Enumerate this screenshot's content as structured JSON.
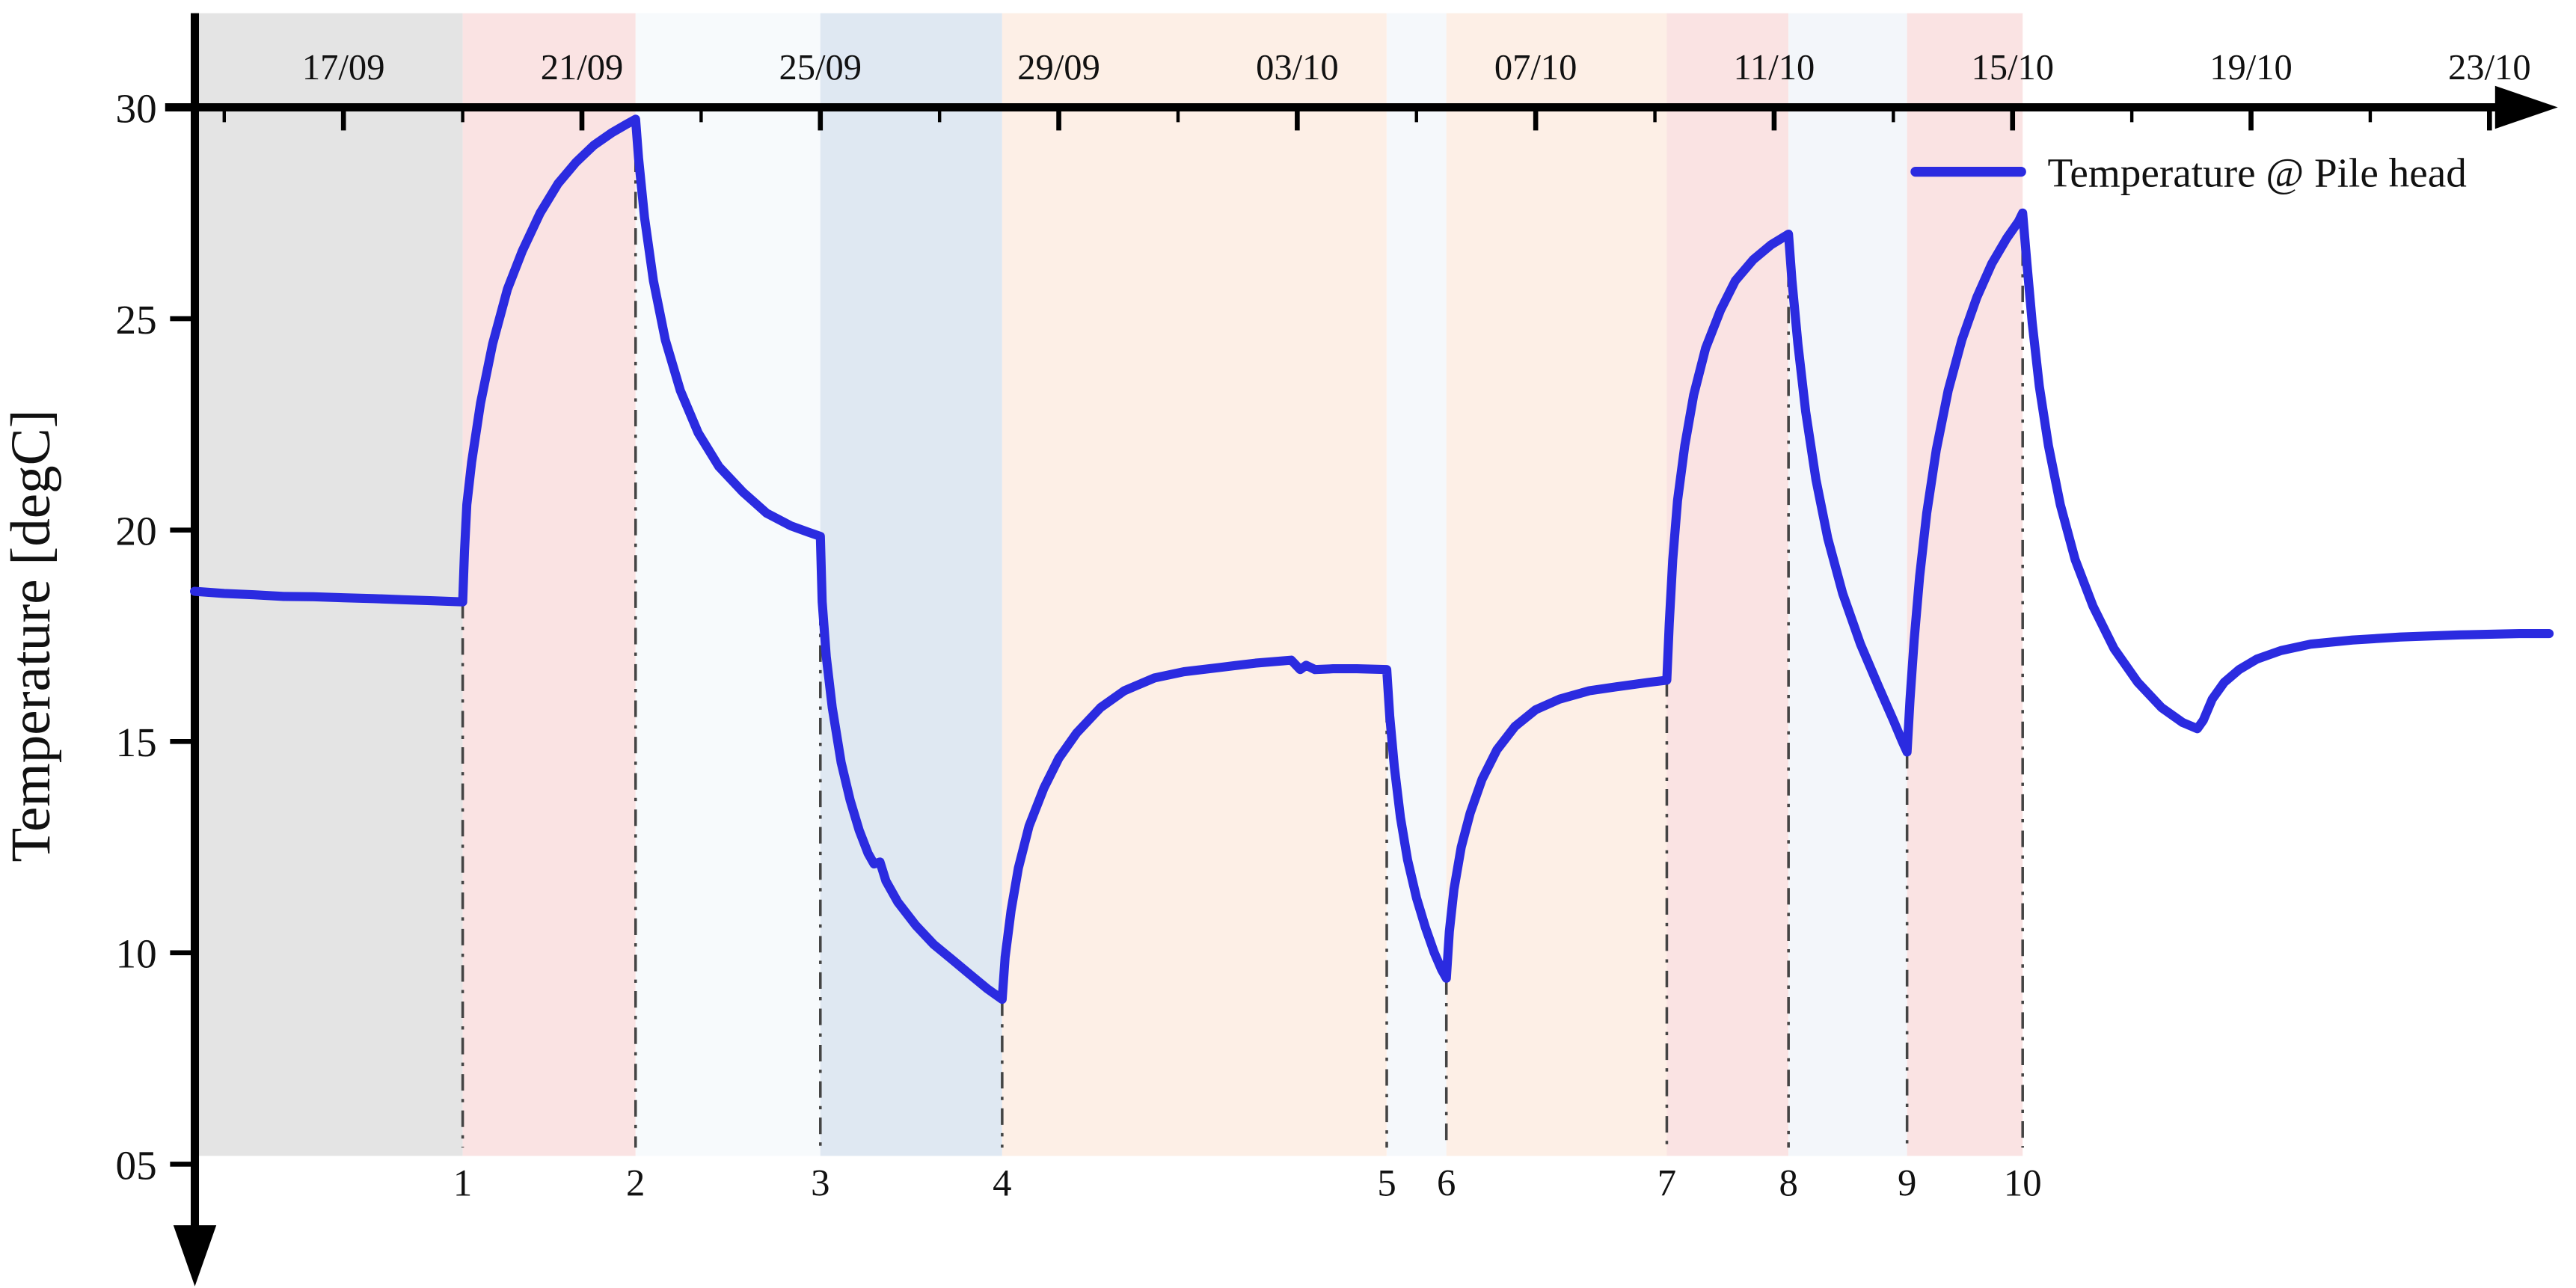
{
  "page": {
    "background": "#ffffff"
  },
  "chart_data": {
    "type": "line",
    "title": "",
    "xlabel": "",
    "ylabel": "Temperature [degC]",
    "ylim": [
      5,
      30
    ],
    "xlim_days": [
      -2.6,
      37.2
    ],
    "grid": false,
    "legend_position": "top-right",
    "legend": {
      "label": "Temperature @ Pile head",
      "color": "#2b2be0"
    },
    "x_axis": {
      "tick_labels": [
        "17/09",
        "21/09",
        "25/09",
        "29/09",
        "03/10",
        "07/10",
        "11/10",
        "15/10",
        "19/10",
        "23/10"
      ],
      "tick_days": [
        0,
        4,
        8,
        12,
        16,
        20,
        24,
        28,
        32,
        36
      ],
      "minor_tick_days": [
        -2,
        2,
        6,
        10,
        14,
        18,
        22,
        26,
        30,
        34
      ]
    },
    "y_axis": {
      "ticks": [
        30,
        25,
        20,
        15,
        10,
        5
      ],
      "tick_labels": [
        "30",
        "25",
        "20",
        "15",
        "10",
        "05"
      ]
    },
    "events": [
      {
        "n": "1",
        "day": 2.0,
        "top_temp": 18.3
      },
      {
        "n": "2",
        "day": 4.9,
        "top_temp": 29.72
      },
      {
        "n": "3",
        "day": 8.0,
        "top_temp": 19.85
      },
      {
        "n": "4",
        "day": 11.05,
        "top_temp": 8.9
      },
      {
        "n": "5",
        "day": 17.5,
        "top_temp": 16.7
      },
      {
        "n": "6",
        "day": 18.5,
        "top_temp": 9.4
      },
      {
        "n": "7",
        "day": 22.2,
        "top_temp": 16.45
      },
      {
        "n": "8",
        "day": 24.24,
        "top_temp": 27.0
      },
      {
        "n": "9",
        "day": 26.23,
        "top_temp": 14.75
      },
      {
        "n": "10",
        "day": 28.17,
        "top_temp": 27.5
      }
    ],
    "bands": [
      {
        "from": -2.5,
        "to": 2.0,
        "color": "#e4e4e4"
      },
      {
        "from": 2.0,
        "to": 4.9,
        "color": "#fae3e3"
      },
      {
        "from": 4.9,
        "to": 8.0,
        "color": "#f7fafc"
      },
      {
        "from": 8.0,
        "to": 11.05,
        "color": "#dfe8f2"
      },
      {
        "from": 11.05,
        "to": 17.5,
        "color": "#fdefe6"
      },
      {
        "from": 17.5,
        "to": 18.5,
        "color": "#f5f8fb"
      },
      {
        "from": 18.5,
        "to": 22.2,
        "color": "#fdefe6"
      },
      {
        "from": 22.2,
        "to": 24.24,
        "color": "#fae3e3"
      },
      {
        "from": 24.24,
        "to": 26.23,
        "color": "#f3f6fa"
      },
      {
        "from": 26.23,
        "to": 28.17,
        "color": "#fae3e3"
      }
    ],
    "series": [
      {
        "name": "Temperature @ Pile head",
        "color": "#2b2be0",
        "points": [
          [
            -2.5,
            18.55
          ],
          [
            -2.0,
            18.5
          ],
          [
            -1.5,
            18.47
          ],
          [
            -1.0,
            18.43
          ],
          [
            -0.5,
            18.42
          ],
          [
            0,
            18.4
          ],
          [
            0.5,
            18.38
          ],
          [
            1.0,
            18.35
          ],
          [
            1.5,
            18.33
          ],
          [
            2.0,
            18.3
          ],
          [
            2.03,
            19.5
          ],
          [
            2.07,
            20.6
          ],
          [
            2.15,
            21.6
          ],
          [
            2.3,
            23.0
          ],
          [
            2.5,
            24.4
          ],
          [
            2.75,
            25.7
          ],
          [
            3.0,
            26.6
          ],
          [
            3.3,
            27.5
          ],
          [
            3.6,
            28.2
          ],
          [
            3.9,
            28.7
          ],
          [
            4.2,
            29.1
          ],
          [
            4.5,
            29.4
          ],
          [
            4.75,
            29.6
          ],
          [
            4.9,
            29.72
          ],
          [
            4.95,
            28.8
          ],
          [
            5.05,
            27.4
          ],
          [
            5.2,
            25.9
          ],
          [
            5.4,
            24.5
          ],
          [
            5.65,
            23.3
          ],
          [
            5.95,
            22.3
          ],
          [
            6.3,
            21.5
          ],
          [
            6.7,
            20.9
          ],
          [
            7.1,
            20.4
          ],
          [
            7.5,
            20.1
          ],
          [
            7.8,
            19.95
          ],
          [
            8.0,
            19.85
          ],
          [
            8.03,
            18.3
          ],
          [
            8.1,
            17.0
          ],
          [
            8.2,
            15.8
          ],
          [
            8.35,
            14.5
          ],
          [
            8.5,
            13.6
          ],
          [
            8.65,
            12.9
          ],
          [
            8.8,
            12.35
          ],
          [
            8.9,
            12.1
          ],
          [
            9.0,
            12.15
          ],
          [
            9.1,
            11.7
          ],
          [
            9.3,
            11.2
          ],
          [
            9.6,
            10.65
          ],
          [
            9.9,
            10.2
          ],
          [
            10.2,
            9.85
          ],
          [
            10.5,
            9.5
          ],
          [
            10.8,
            9.15
          ],
          [
            11.05,
            8.9
          ],
          [
            11.1,
            9.9
          ],
          [
            11.2,
            11.0
          ],
          [
            11.32,
            12.0
          ],
          [
            11.5,
            13.0
          ],
          [
            11.75,
            13.9
          ],
          [
            12.0,
            14.6
          ],
          [
            12.3,
            15.2
          ],
          [
            12.7,
            15.8
          ],
          [
            13.1,
            16.2
          ],
          [
            13.6,
            16.5
          ],
          [
            14.1,
            16.65
          ],
          [
            14.7,
            16.75
          ],
          [
            15.3,
            16.85
          ],
          [
            15.9,
            16.92
          ],
          [
            16.05,
            16.7
          ],
          [
            16.15,
            16.8
          ],
          [
            16.3,
            16.7
          ],
          [
            16.6,
            16.72
          ],
          [
            17.0,
            16.72
          ],
          [
            17.5,
            16.7
          ],
          [
            17.55,
            15.6
          ],
          [
            17.63,
            14.4
          ],
          [
            17.73,
            13.2
          ],
          [
            17.85,
            12.2
          ],
          [
            18.0,
            11.3
          ],
          [
            18.15,
            10.6
          ],
          [
            18.3,
            10.0
          ],
          [
            18.42,
            9.6
          ],
          [
            18.5,
            9.4
          ],
          [
            18.55,
            10.5
          ],
          [
            18.63,
            11.5
          ],
          [
            18.75,
            12.5
          ],
          [
            18.9,
            13.3
          ],
          [
            19.1,
            14.1
          ],
          [
            19.35,
            14.8
          ],
          [
            19.65,
            15.35
          ],
          [
            20.0,
            15.75
          ],
          [
            20.4,
            16.0
          ],
          [
            20.9,
            16.2
          ],
          [
            21.4,
            16.3
          ],
          [
            21.9,
            16.4
          ],
          [
            22.2,
            16.45
          ],
          [
            22.24,
            17.8
          ],
          [
            22.3,
            19.3
          ],
          [
            22.38,
            20.7
          ],
          [
            22.5,
            22.0
          ],
          [
            22.65,
            23.2
          ],
          [
            22.85,
            24.3
          ],
          [
            23.1,
            25.2
          ],
          [
            23.35,
            25.9
          ],
          [
            23.65,
            26.4
          ],
          [
            23.95,
            26.75
          ],
          [
            24.24,
            27.0
          ],
          [
            24.3,
            25.9
          ],
          [
            24.4,
            24.4
          ],
          [
            24.53,
            22.8
          ],
          [
            24.7,
            21.2
          ],
          [
            24.9,
            19.8
          ],
          [
            25.15,
            18.5
          ],
          [
            25.45,
            17.3
          ],
          [
            25.75,
            16.3
          ],
          [
            26.0,
            15.5
          ],
          [
            26.15,
            15.0
          ],
          [
            26.23,
            14.75
          ],
          [
            26.28,
            16.0
          ],
          [
            26.35,
            17.4
          ],
          [
            26.44,
            18.9
          ],
          [
            26.56,
            20.4
          ],
          [
            26.72,
            21.9
          ],
          [
            26.92,
            23.3
          ],
          [
            27.15,
            24.5
          ],
          [
            27.4,
            25.5
          ],
          [
            27.65,
            26.3
          ],
          [
            27.9,
            26.9
          ],
          [
            28.1,
            27.3
          ],
          [
            28.17,
            27.5
          ],
          [
            28.24,
            26.3
          ],
          [
            28.33,
            24.9
          ],
          [
            28.45,
            23.4
          ],
          [
            28.6,
            22.0
          ],
          [
            28.8,
            20.6
          ],
          [
            29.05,
            19.3
          ],
          [
            29.35,
            18.2
          ],
          [
            29.7,
            17.2
          ],
          [
            30.1,
            16.4
          ],
          [
            30.5,
            15.8
          ],
          [
            30.85,
            15.45
          ],
          [
            31.1,
            15.3
          ],
          [
            31.2,
            15.5
          ],
          [
            31.35,
            16.0
          ],
          [
            31.55,
            16.4
          ],
          [
            31.8,
            16.7
          ],
          [
            32.1,
            16.95
          ],
          [
            32.5,
            17.15
          ],
          [
            33.0,
            17.3
          ],
          [
            33.7,
            17.4
          ],
          [
            34.5,
            17.47
          ],
          [
            35.5,
            17.52
          ],
          [
            36.5,
            17.55
          ],
          [
            37.0,
            17.55
          ]
        ]
      }
    ]
  }
}
